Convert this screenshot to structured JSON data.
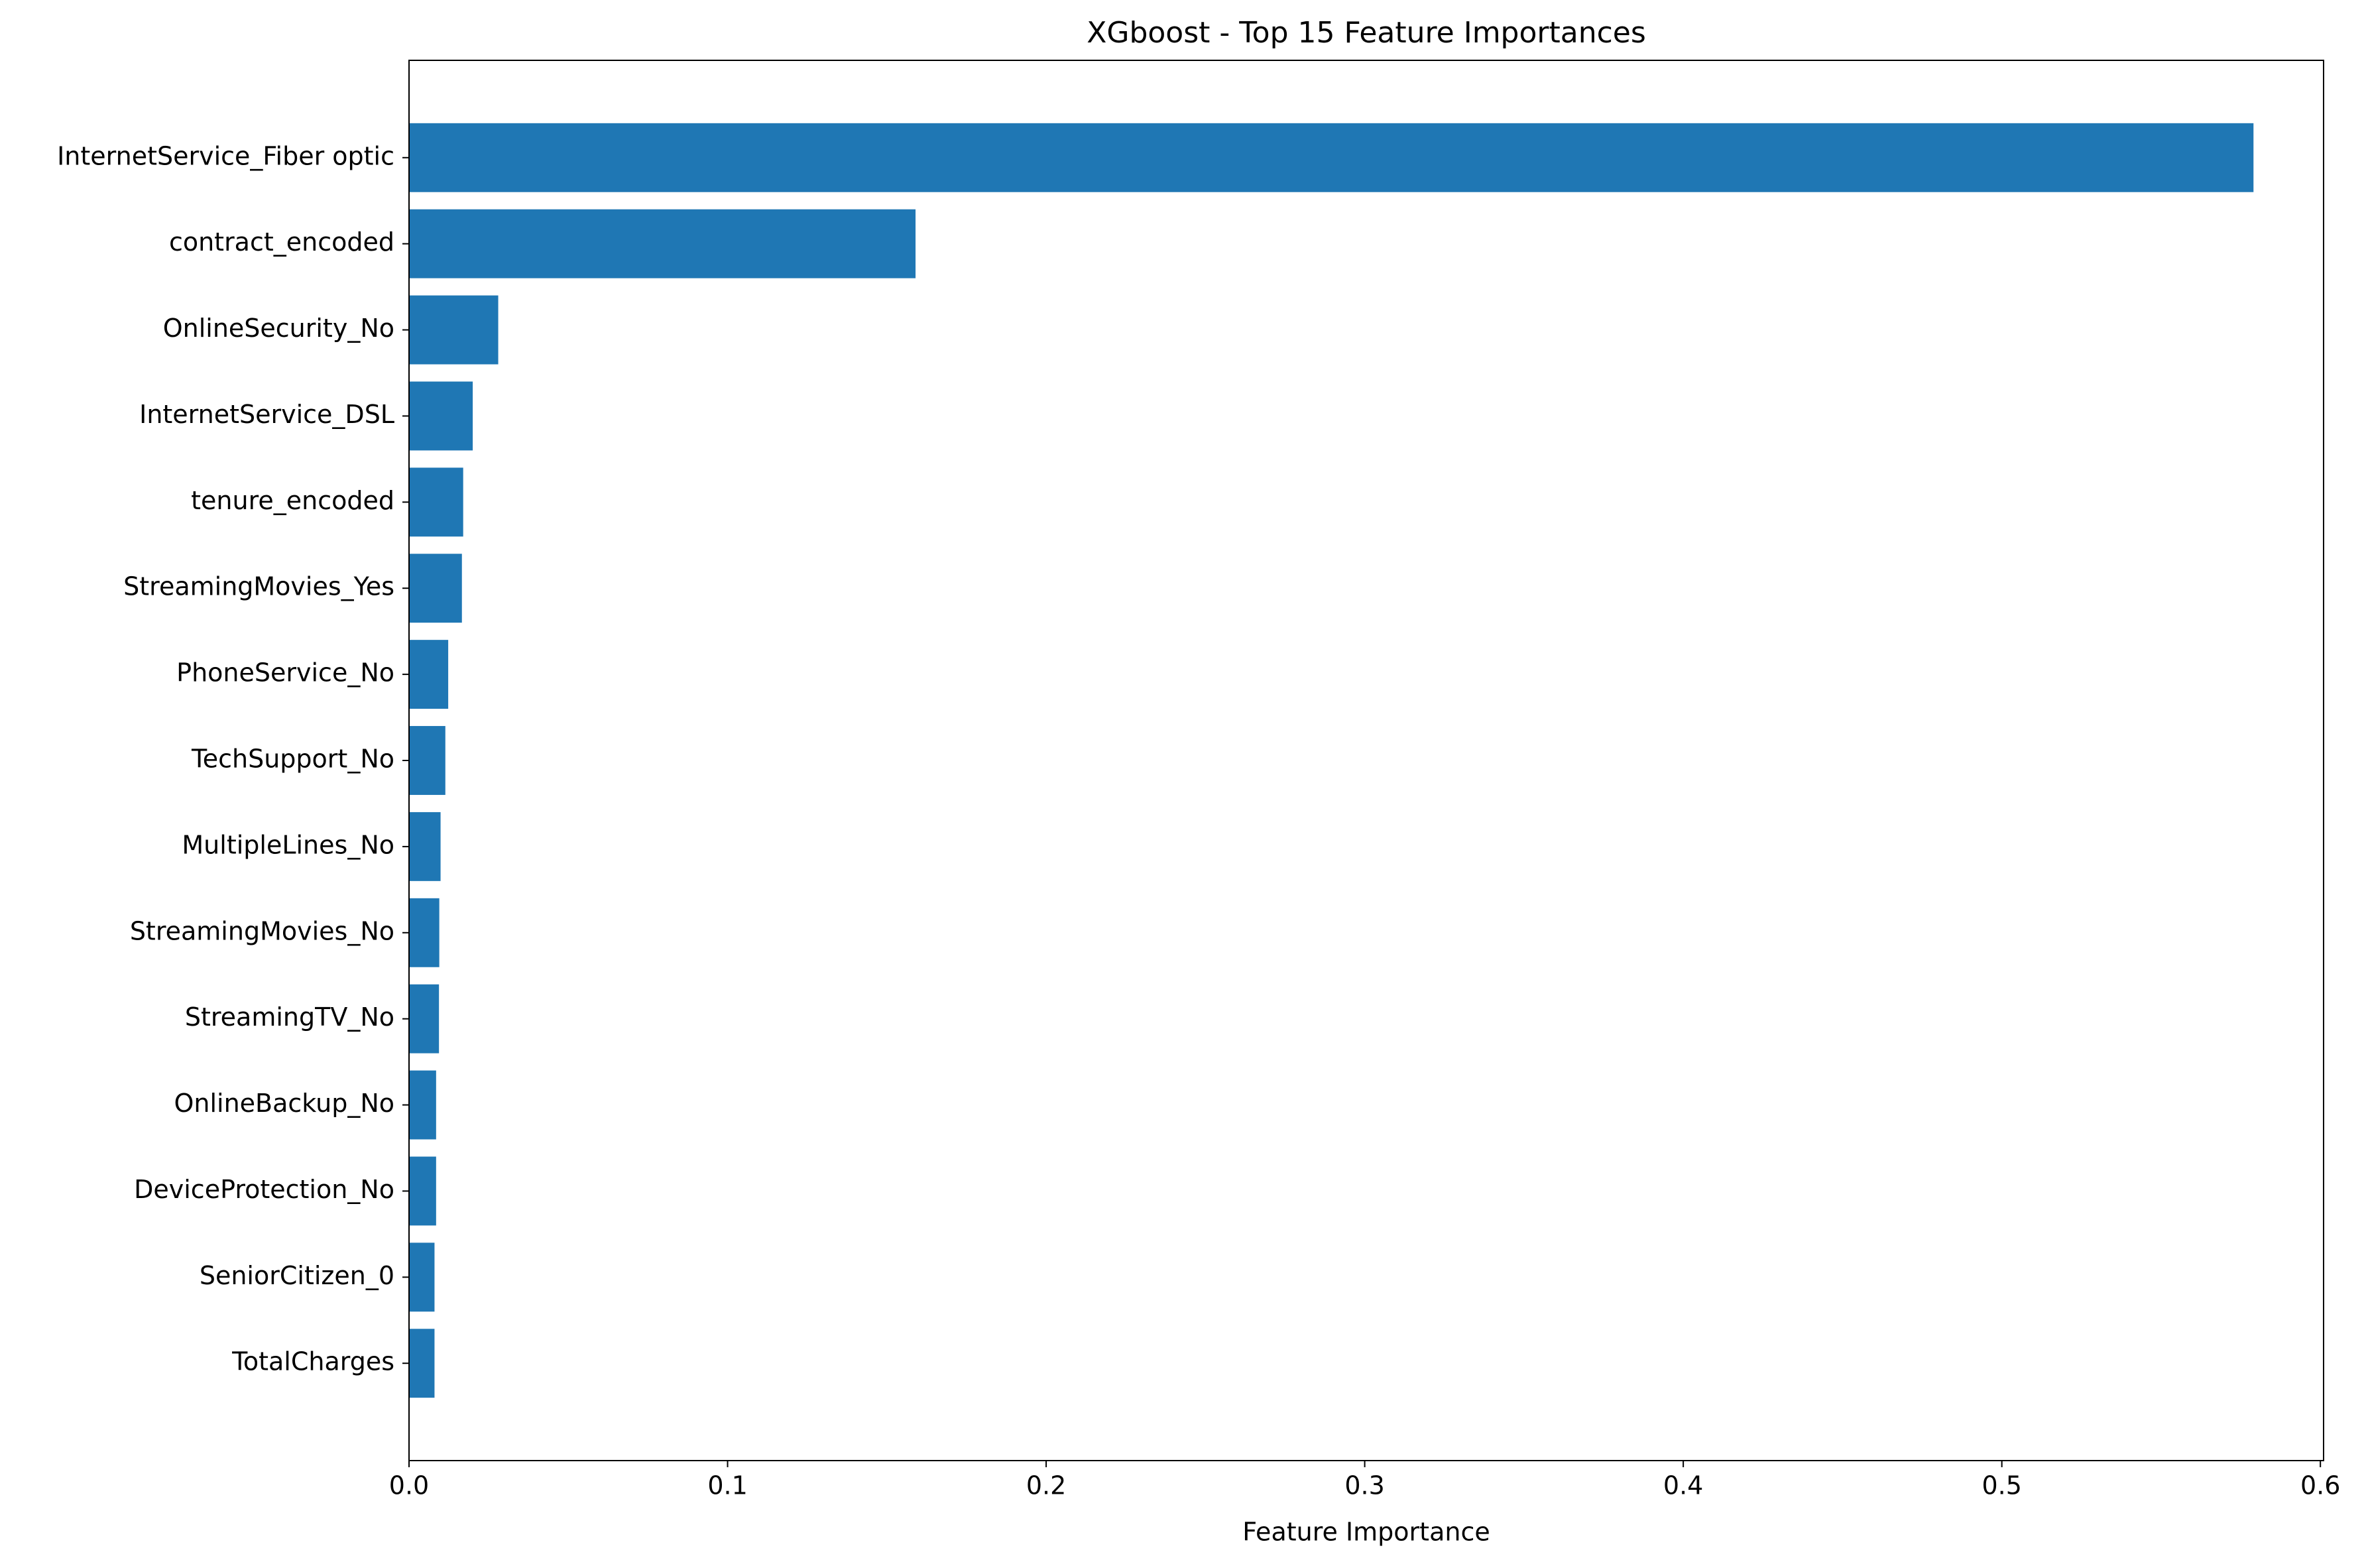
{
  "chart_data": {
    "type": "barh",
    "title": "XGboost - Top 15 Feature Importances",
    "x_label": "Feature Importance",
    "categories": [
      "InternetService_Fiber optic",
      "contract_encoded",
      "OnlineSecurity_No",
      "InternetService_DSL",
      "tenure_encoded",
      "StreamingMovies_Yes",
      "PhoneService_No",
      "TechSupport_No",
      "MultipleLines_No",
      "StreamingMovies_No",
      "StreamingTV_No",
      "OnlineBackup_No",
      "DeviceProtection_No",
      "SeniorCitizen_0",
      "TotalCharges"
    ],
    "values": [
      0.579,
      0.159,
      0.028,
      0.02,
      0.017,
      0.0166,
      0.0123,
      0.0114,
      0.0099,
      0.0095,
      0.0094,
      0.0085,
      0.0085,
      0.008,
      0.008
    ],
    "color": "#1f77b4",
    "xlim": [
      0,
      0.601
    ],
    "xticks": [
      {
        "value": 0,
        "label": "0.0"
      },
      0.1,
      0.2,
      0.3,
      0.4,
      0.5,
      0.6
    ]
  }
}
